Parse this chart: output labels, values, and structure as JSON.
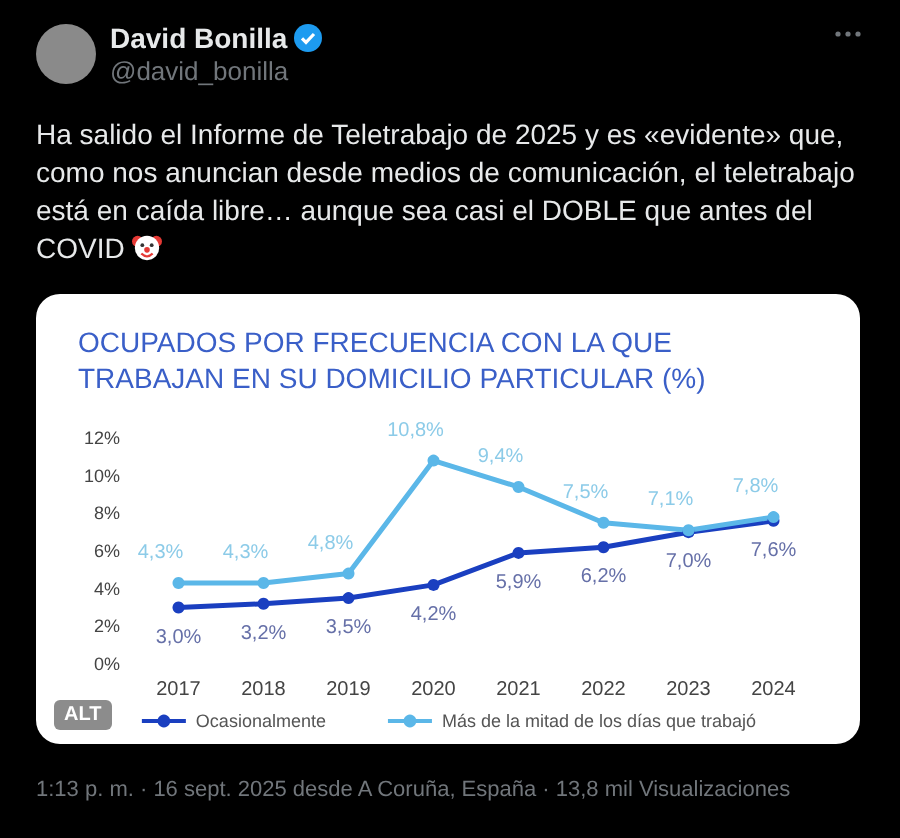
{
  "chart_data": {
    "type": "line",
    "title": "OCUPADOS POR FRECUENCIA CON LA QUE TRABAJAN EN SU DOMICILIO PARTICULAR (%)",
    "categories": [
      "2017",
      "2018",
      "2019",
      "2020",
      "2021",
      "2022",
      "2023",
      "2024"
    ],
    "series": [
      {
        "name": "Ocasionalmente",
        "color": "#1a3fc0",
        "values": [
          3.0,
          3.2,
          3.5,
          4.2,
          5.9,
          6.2,
          7.0,
          7.6
        ],
        "value_labels": [
          "3,0%",
          "3,2%",
          "3,5%",
          "4,2%",
          "5,9%",
          "6,2%",
          "7,0%",
          "7,6%"
        ]
      },
      {
        "name": "Más de la mitad de los días que trabajó",
        "color": "#5bb7e8",
        "values": [
          4.3,
          4.3,
          4.8,
          10.8,
          9.4,
          7.5,
          7.1,
          7.8
        ],
        "value_labels": [
          "4,3%",
          "4,3%",
          "4,8%",
          "10,8%",
          "9,4%",
          "7,5%",
          "7,1%",
          "7,8%"
        ]
      }
    ],
    "ylim": [
      0,
      12
    ],
    "yticks": [
      {
        "value": 0,
        "label": "0%"
      },
      {
        "value": 2,
        "label": "2%"
      },
      {
        "value": 4,
        "label": "4%"
      },
      {
        "value": 6,
        "label": "6%"
      },
      {
        "value": 8,
        "label": "8%"
      },
      {
        "value": 10,
        "label": "10%"
      },
      {
        "value": 12,
        "label": "12%"
      }
    ],
    "grid": false,
    "legend": "bottom",
    "marker": "circle",
    "line_style": "solid",
    "annotations": [
      "David Bonilla",
      "@david_bonilla",
      "Ha salido el Informe de Teletrabajo de 2025 y es «evidente» que, como nos anuncian desde medios de comunicación, el teletrabajo está en caída libre… aunque sea casi el DOBLE que antes del COVID",
      "ALT",
      "1:13 p. m. · 16 sept. 2025 desde A Coruña, España · 13,8 mil Visualizaciones"
    ]
  }
}
